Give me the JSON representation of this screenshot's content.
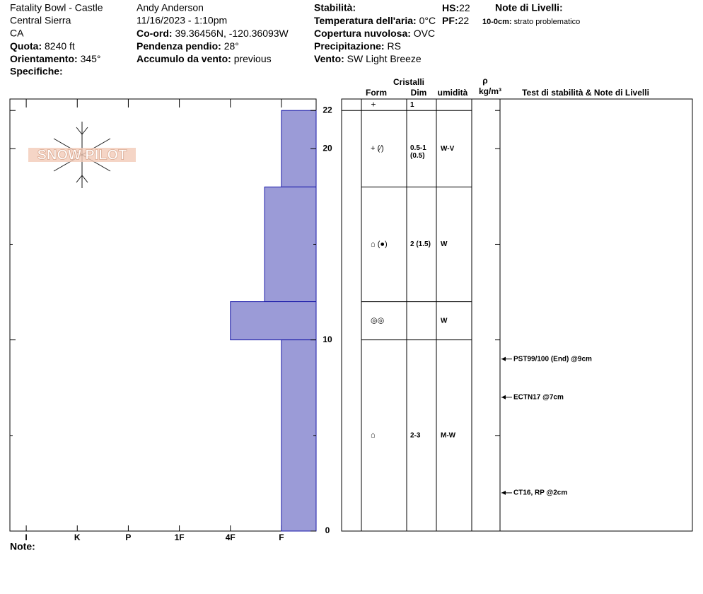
{
  "header": {
    "location": "Fatality Bowl - Castle",
    "range": "Central Sierra",
    "state": "CA",
    "elevation": {
      "label": "Quota:",
      "value": "8240 ft"
    },
    "aspect": {
      "label": "Orientamento:",
      "value": "345°"
    },
    "specifics": {
      "label": "Specifiche:"
    },
    "observer": "Andy Anderson",
    "datetime": "11/16/2023 - 1:10pm",
    "coords": {
      "label": "Co-ord:",
      "value": "39.36456N, -120.36093W"
    },
    "slope": {
      "label": "Pendenza pendio:",
      "value": "28°"
    },
    "wind_loading": {
      "label": "Accumulo da vento:",
      "value": "previous"
    },
    "stability": {
      "label": "Stabilità:"
    },
    "air_temp": {
      "label": "Temperatura dell'aria:",
      "value": "0°C"
    },
    "sky": {
      "label": "Copertura nuvolosa:",
      "value": "OVC"
    },
    "precip": {
      "label": "Precipitazione:",
      "value": "RS"
    },
    "wind": {
      "label": "Vento:",
      "value": "SW Light Breeze"
    },
    "hs": {
      "label": "HS:",
      "value": "22"
    },
    "pf": {
      "label": "PF:",
      "value": "22"
    },
    "layer_notes": {
      "title": "Note di Livelli:",
      "items": [
        {
          "range": "10-0cm:",
          "text": "strato problematico"
        }
      ]
    }
  },
  "logo": "SNOW PILOT",
  "chart_data": {
    "type": "bar",
    "orientation": "horizontal",
    "color": "#9b9bd7",
    "xlim": [
      6.32,
      0.32
    ],
    "xticks": [
      {
        "value": 6,
        "label": "I"
      },
      {
        "value": 5,
        "label": "K"
      },
      {
        "value": 4,
        "label": "P"
      },
      {
        "value": 3,
        "label": "1F"
      },
      {
        "value": 2,
        "label": "4F"
      },
      {
        "value": 1,
        "label": "F"
      }
    ],
    "ylim": [
      0,
      22.6
    ],
    "yticks": [
      0,
      10,
      20,
      22
    ],
    "minor_yticks": [
      5,
      15
    ],
    "layers": [
      {
        "top": 22,
        "bottom": 18,
        "hardness": 1
      },
      {
        "top": 18,
        "bottom": 12,
        "hardness": 1.33
      },
      {
        "top": 12,
        "bottom": 10,
        "hardness": 2
      },
      {
        "top": 10,
        "bottom": 0,
        "hardness": 1
      }
    ],
    "tests": [
      {
        "label": "PST99/100 (End) @9cm",
        "depth": 9
      },
      {
        "label": "ECTN17 @7cm",
        "depth": 7
      },
      {
        "label": "CT16, RP @2cm",
        "depth": 2
      }
    ]
  },
  "layer_table": {
    "headers": {
      "crystals": "Cristalli",
      "form": "Form",
      "size": "Dim",
      "moisture": "umidità",
      "density": "ρ",
      "density_unit": "kg/m³",
      "tests": "Test di stabilità & Note di Livelli"
    },
    "surface": {
      "form": "+",
      "size": "1"
    },
    "rows": [
      {
        "form": "+ (⁄)",
        "size": "0.5-1",
        "size_note": "(0.5)",
        "moisture": "W-V"
      },
      {
        "form": "⌂ (●)",
        "size": "2 (1.5)",
        "moisture": "W"
      },
      {
        "form": "◎◎",
        "moisture": "W"
      },
      {
        "form": "⌂",
        "size": "2-3",
        "moisture": "M-W"
      }
    ]
  },
  "note": "Note:"
}
